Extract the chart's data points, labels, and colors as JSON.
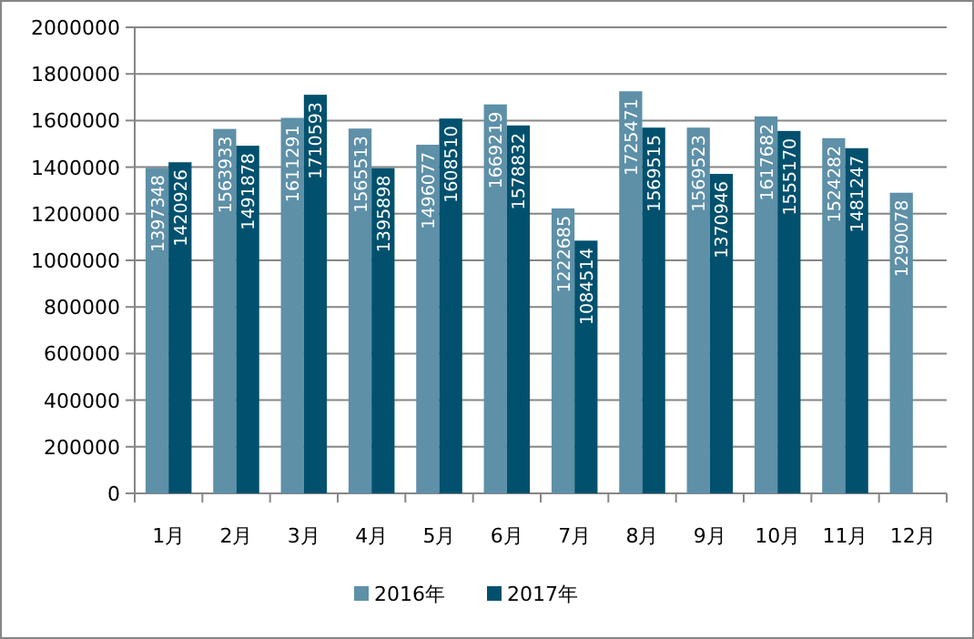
{
  "chart_data": {
    "type": "bar",
    "categories": [
      "1月",
      "2月",
      "3月",
      "4月",
      "5月",
      "6月",
      "7月",
      "8月",
      "9月",
      "10月",
      "11月",
      "12月"
    ],
    "series": [
      {
        "name": "2016年",
        "color": "#5e90a8",
        "values": [
          1397348,
          1563933,
          1611291,
          1565513,
          1496077,
          1669219,
          1222685,
          1725471,
          1569523,
          1617682,
          1524282,
          1290078
        ]
      },
      {
        "name": "2017年",
        "color": "#01516e",
        "values": [
          1420926,
          1491878,
          1710593,
          1395898,
          1608510,
          1578832,
          1084514,
          1569515,
          1370946,
          1555170,
          1481247,
          null
        ]
      }
    ],
    "ylim": [
      0,
      2000000
    ],
    "yticks": [
      0,
      200000,
      400000,
      600000,
      800000,
      1000000,
      1200000,
      1400000,
      1600000,
      1800000,
      2000000
    ],
    "grid": "y",
    "legend": "bottom",
    "data_labels": true
  }
}
